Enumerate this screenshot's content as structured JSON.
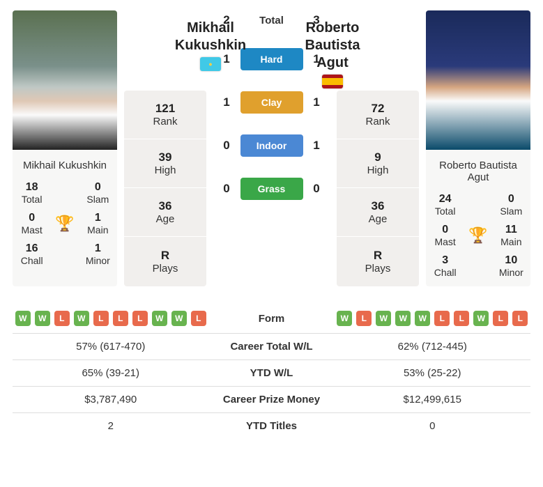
{
  "player1": {
    "name": "Mikhail Kukushkin",
    "headerName": "Mikhail\nKukushkin",
    "flag": "kz",
    "rank": "121",
    "high": "39",
    "age": "36",
    "plays": "R",
    "titles": {
      "total": "18",
      "slam": "0",
      "mast": "0",
      "main": "1",
      "chall": "16",
      "minor": "1"
    },
    "form": [
      "W",
      "W",
      "L",
      "W",
      "L",
      "L",
      "L",
      "W",
      "W",
      "L"
    ],
    "career": "57% (617-470)",
    "ytd": "65% (39-21)",
    "prize": "$3,787,490",
    "ytdTitles": "2"
  },
  "player2": {
    "name": "Roberto Bautista Agut",
    "headerName": "Roberto\nBautista Agut",
    "flag": "es",
    "rank": "72",
    "high": "9",
    "age": "36",
    "plays": "R",
    "titles": {
      "total": "24",
      "slam": "0",
      "mast": "0",
      "main": "11",
      "chall": "3",
      "minor": "10"
    },
    "form": [
      "W",
      "L",
      "W",
      "W",
      "W",
      "L",
      "L",
      "W",
      "L",
      "L"
    ],
    "career": "62% (712-445)",
    "ytd": "53% (25-22)",
    "prize": "$12,499,615",
    "ytdTitles": "0"
  },
  "h2h": {
    "total": {
      "p1": "2",
      "p2": "3",
      "label": "Total"
    },
    "surfaces": [
      {
        "p1": "1",
        "p2": "1",
        "label": "Hard",
        "color": "#1e88c4"
      },
      {
        "p1": "1",
        "p2": "1",
        "label": "Clay",
        "color": "#e0a02d"
      },
      {
        "p1": "0",
        "p2": "1",
        "label": "Indoor",
        "color": "#4b88d4"
      },
      {
        "p1": "0",
        "p2": "0",
        "label": "Grass",
        "color": "#3aa748"
      }
    ]
  },
  "infoLabels": {
    "rank": "Rank",
    "high": "High",
    "age": "Age",
    "plays": "Plays"
  },
  "titleLabels": {
    "total": "Total",
    "slam": "Slam",
    "mast": "Mast",
    "main": "Main",
    "chall": "Chall",
    "minor": "Minor"
  },
  "statsLabels": {
    "form": "Form",
    "career": "Career Total W/L",
    "ytd": "YTD W/L",
    "prize": "Career Prize Money",
    "ytdTitles": "YTD Titles"
  },
  "trophy": "🏆"
}
